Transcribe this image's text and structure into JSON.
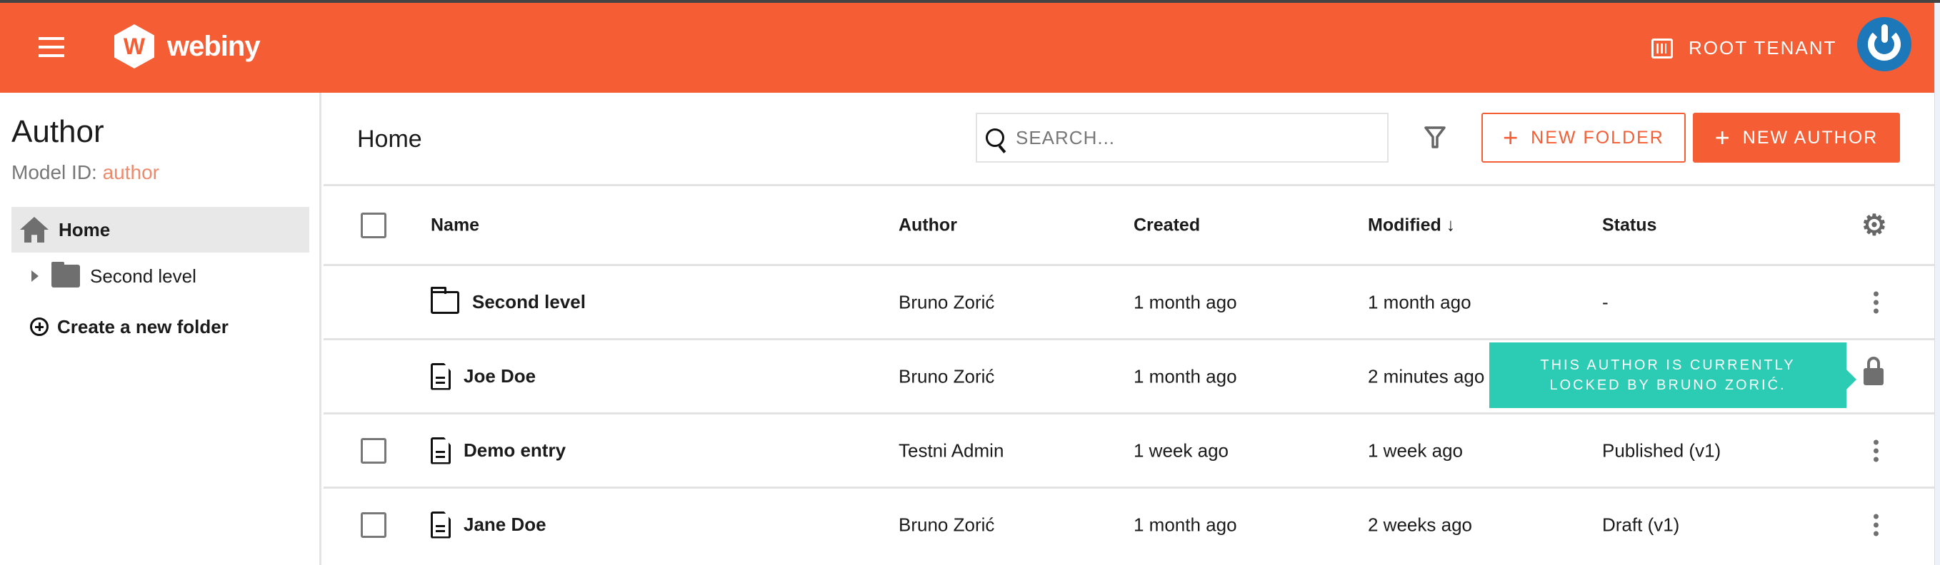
{
  "header": {
    "logo_text": "webiny",
    "logo_letter": "W",
    "tenant_label": "ROOT TENANT",
    "brand_color": "#f55e35"
  },
  "sidebar": {
    "title": "Author",
    "model_id_label": "Model ID:",
    "model_id_value": "author",
    "items": [
      {
        "label": "Home",
        "icon": "home-icon",
        "active": true
      },
      {
        "label": "Second level",
        "icon": "folder-icon"
      }
    ],
    "create_folder_label": "Create a new folder"
  },
  "main": {
    "title": "Home",
    "search_placeholder": "SEARCH...",
    "new_folder_label": "NEW FOLDER",
    "new_author_label": "NEW AUTHOR",
    "columns": [
      "Name",
      "Author",
      "Created",
      "Modified",
      "Status"
    ],
    "sort_indicator": "↓",
    "rows": [
      {
        "type": "folder",
        "name": "Second level",
        "author": "Bruno Zorić",
        "created": "1 month ago",
        "modified": "1 month ago",
        "status": "-"
      },
      {
        "type": "entry",
        "name": "Joe Doe",
        "author": "Bruno Zorić",
        "created": "1 month ago",
        "modified": "2 minutes ago",
        "status": "",
        "locked": true
      },
      {
        "type": "entry",
        "name": "Demo entry",
        "author": "Testni Admin",
        "created": "1 week ago",
        "modified": "1 week ago",
        "status": "Published (v1)"
      },
      {
        "type": "entry",
        "name": "Jane Doe",
        "author": "Bruno Zorić",
        "created": "1 month ago",
        "modified": "2 weeks ago",
        "status": "Draft (v1)"
      }
    ],
    "lock_tooltip": "THIS AUTHOR IS CURRENTLY LOCKED BY BRUNO ZORIĆ.",
    "tooltip_color": "#2ccbb4"
  }
}
